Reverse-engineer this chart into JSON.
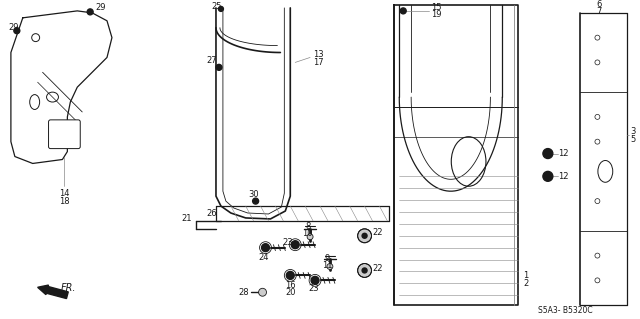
{
  "background_color": "#ffffff",
  "diagram_code": "S5A3- B5320C",
  "black": "#1a1a1a",
  "gray": "#888888",
  "light_gray": "#cccccc"
}
